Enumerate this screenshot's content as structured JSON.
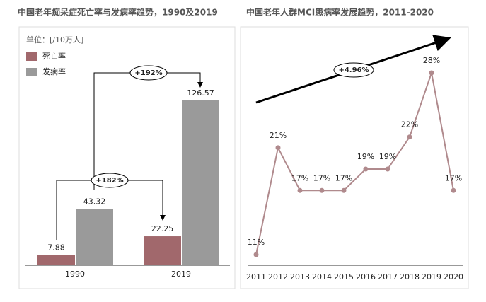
{
  "chart_data": [
    {
      "type": "bar",
      "title": "中国老年痴呆症死亡率与发病率趋势，1990及2019",
      "unit": "单位：[/10万人]",
      "categories": [
        "1990",
        "2019"
      ],
      "series": [
        {
          "name": "死亡率",
          "color": "#a1686c",
          "values": [
            7.88,
            22.25
          ]
        },
        {
          "name": "发病率",
          "color": "#9a9a9a",
          "values": [
            43.32,
            126.57
          ]
        }
      ],
      "annotations": [
        "+192%",
        "+182%"
      ]
    },
    {
      "type": "line",
      "title": "中国老年人群MCI患病率发展趋势，2011-2020",
      "categories": [
        "2011",
        "2012",
        "2013",
        "2014",
        "2015",
        "2016",
        "2017",
        "2018",
        "2019",
        "2020"
      ],
      "values": [
        11,
        21,
        17,
        17,
        17,
        19,
        19,
        22,
        28,
        17
      ],
      "value_labels": [
        "11%",
        "21%",
        "17%",
        "17%",
        "17%",
        "19%",
        "19%",
        "22%",
        "28%",
        "17%"
      ],
      "color": "#b08a8d",
      "annotation": "+4.96%"
    }
  ]
}
